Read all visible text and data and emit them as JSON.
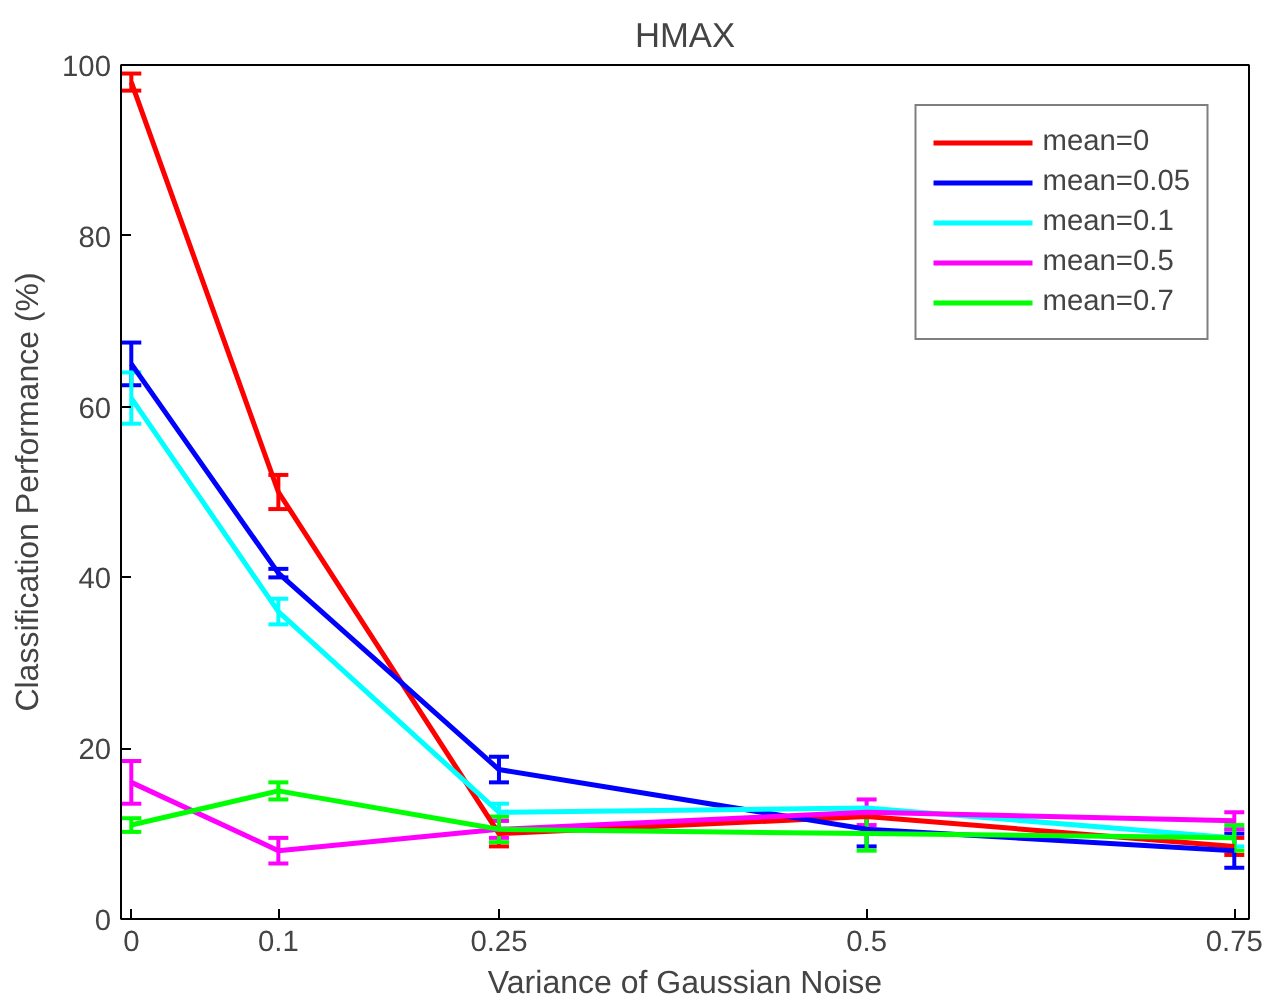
{
  "chart_data": {
    "type": "line",
    "title": "HMAX",
    "xlabel": "Variance of Gaussian Noise",
    "ylabel": "Classification Performance (%)",
    "x": [
      0,
      0.1,
      0.25,
      0.5,
      0.75
    ],
    "xlim": [
      -0.007,
      0.76
    ],
    "xticks": [
      0,
      0.1,
      0.25,
      0.5,
      0.75
    ],
    "ylim": [
      0,
      100
    ],
    "yticks": [
      0,
      20,
      40,
      60,
      80,
      100
    ],
    "legend": "top right",
    "grid": false,
    "series": [
      {
        "name": "mean=0",
        "color": "#ff0000",
        "values": [
          98,
          50,
          10,
          12,
          8.5
        ],
        "errors": [
          1,
          2,
          1.5,
          null,
          1
        ]
      },
      {
        "name": "mean=0.05",
        "color": "#0000ff",
        "values": [
          65,
          40.5,
          17.5,
          10.5,
          8
        ],
        "errors": [
          2.5,
          0.5,
          1.5,
          2,
          2
        ]
      },
      {
        "name": "mean=0.1",
        "color": "#00ffff",
        "values": [
          61,
          36,
          12.5,
          13,
          9.5
        ],
        "errors": [
          3,
          1.5,
          1,
          null,
          1
        ]
      },
      {
        "name": "mean=0.5",
        "color": "#ff00ff",
        "values": [
          16,
          8,
          10.5,
          12.5,
          11.5
        ],
        "errors": [
          2.5,
          1.5,
          1,
          1.5,
          1
        ]
      },
      {
        "name": "mean=0.7",
        "color": "#00ff00",
        "values": [
          11,
          15,
          10.5,
          10,
          9.5
        ],
        "errors": [
          0.8,
          1,
          1.5,
          2,
          1.5
        ]
      }
    ]
  }
}
